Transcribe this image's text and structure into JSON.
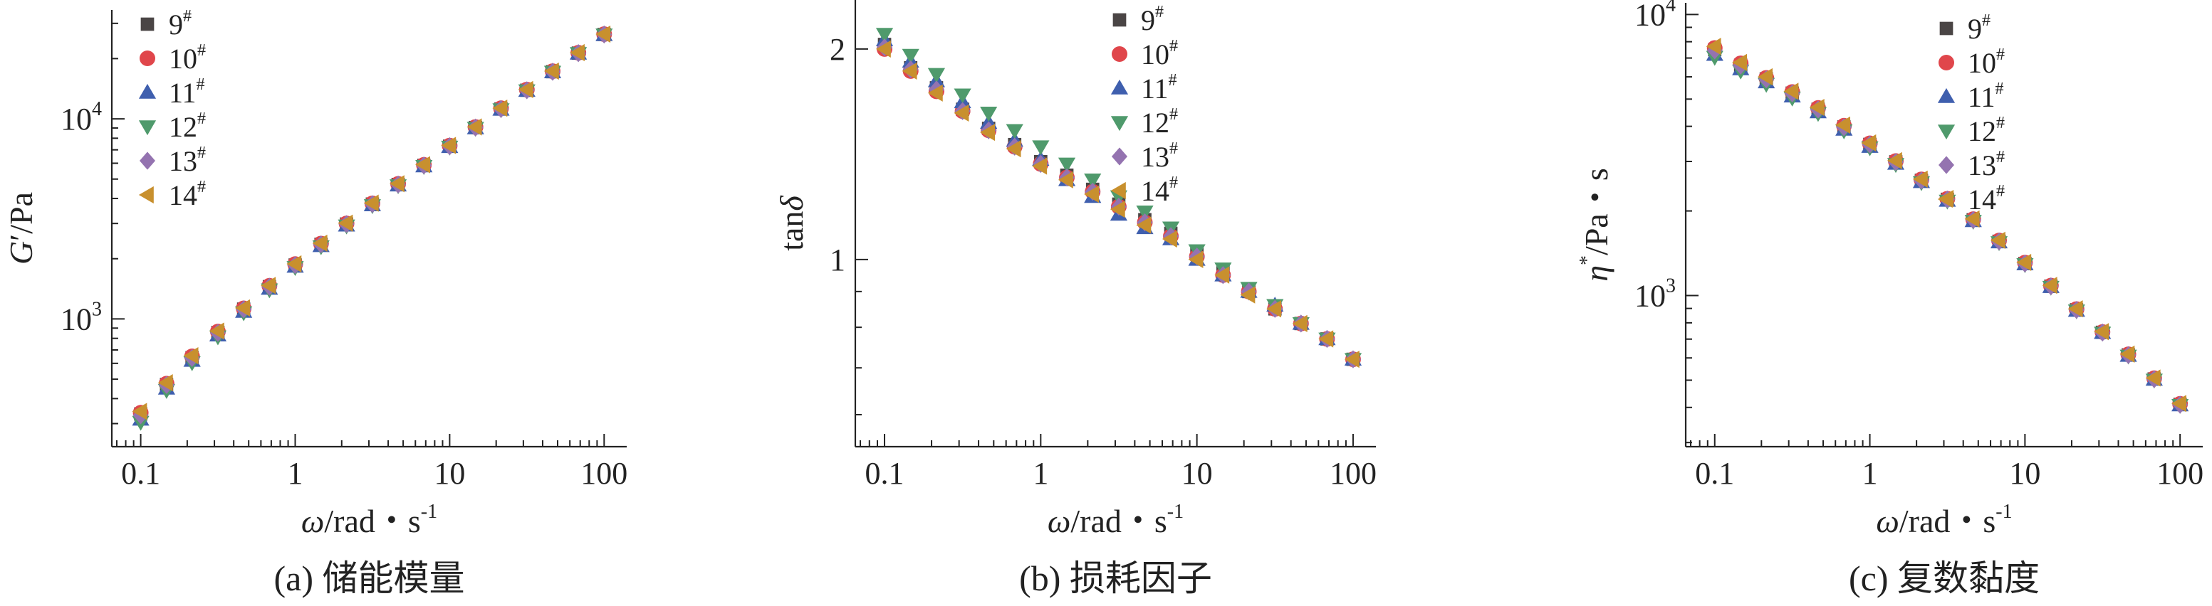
{
  "samples": [
    "9",
    "10",
    "11",
    "12",
    "13",
    "14"
  ],
  "sample_sup": "#",
  "colors": {
    "9": "#4a4545",
    "10": "#e0464b",
    "11": "#3f5fae",
    "12": "#4f9a6c",
    "13": "#9473b0",
    "14": "#c8902e",
    "axis": "#222222"
  },
  "markers": {
    "9": "square",
    "10": "circle",
    "11": "triangle-up",
    "12": "triangle-down",
    "13": "diamond",
    "14": "triangle-left"
  },
  "chart_data": [
    {
      "panel": "a",
      "type": "scatter",
      "caption": "(a) 储能模量",
      "ylabel_main": "G",
      "ylabel_prime": "′",
      "ylabel_unit": "/Pa",
      "xlabel_main": "ω",
      "xlabel_unit": "/rad・s",
      "xlabel_sup": "-1",
      "xscale": "log",
      "yscale": "log",
      "xlim": [
        0.065,
        140
      ],
      "ylim": [
        230,
        35000
      ],
      "xticks": [
        0.1,
        1,
        10,
        100
      ],
      "xtick_labels": [
        "0.1",
        "1",
        "10",
        "100"
      ],
      "yticks": [
        1000,
        10000
      ],
      "ytick_labels": [
        {
          "base": "10",
          "exp": "3"
        },
        {
          "base": "10",
          "exp": "4"
        }
      ],
      "legend": "top-left",
      "x": [
        0.1,
        0.147,
        0.215,
        0.316,
        0.464,
        0.681,
        1.0,
        1.47,
        2.15,
        3.16,
        4.64,
        6.81,
        10,
        14.7,
        21.5,
        31.6,
        46.4,
        68.1,
        100
      ],
      "series": [
        {
          "name": "9",
          "values": [
            335,
            470,
            640,
            855,
            1120,
            1450,
            1860,
            2360,
            2980,
            3750,
            4700,
            5850,
            7300,
            9050,
            11200,
            13900,
            17200,
            21300,
            26400
          ]
        },
        {
          "name": "10",
          "values": [
            340,
            475,
            650,
            865,
            1130,
            1465,
            1880,
            2380,
            3000,
            3780,
            4730,
            5890,
            7350,
            9100,
            11300,
            14000,
            17300,
            21400,
            26500
          ]
        },
        {
          "name": "11",
          "values": [
            315,
            450,
            620,
            830,
            1090,
            1420,
            1830,
            2320,
            2940,
            3710,
            4660,
            5810,
            7250,
            9000,
            11150,
            13850,
            17150,
            21250,
            26300
          ]
        },
        {
          "name": "12",
          "values": [
            305,
            440,
            605,
            815,
            1075,
            1400,
            1810,
            2300,
            2920,
            3690,
            4640,
            5790,
            7230,
            8980,
            11130,
            13830,
            17130,
            21230,
            26300
          ]
        },
        {
          "name": "13",
          "values": [
            330,
            468,
            638,
            852,
            1118,
            1448,
            1858,
            2358,
            2978,
            3748,
            4698,
            5848,
            7298,
            9048,
            11198,
            13898,
            17198,
            21298,
            26400
          ]
        },
        {
          "name": "14",
          "values": [
            345,
            480,
            655,
            870,
            1135,
            1470,
            1885,
            2390,
            3010,
            3790,
            4740,
            5900,
            7360,
            9110,
            11300,
            14010,
            17310,
            21420,
            26500
          ]
        }
      ]
    },
    {
      "panel": "b",
      "type": "scatter",
      "caption": "(b) 损耗因子",
      "ylabel_main": "tan",
      "ylabel_delta": "δ",
      "xlabel_main": "ω",
      "xlabel_unit": "/rad・s",
      "xlabel_sup": "-1",
      "xscale": "log",
      "yscale": "log",
      "xlim": [
        0.065,
        140
      ],
      "ylim": [
        0.54,
        2.35
      ],
      "xticks": [
        0.1,
        1,
        10,
        100
      ],
      "xtick_labels": [
        "0.1",
        "1",
        "10",
        "100"
      ],
      "yticks": [
        1,
        2
      ],
      "ytick_labels": [
        "1",
        "2"
      ],
      "legend": "top-right",
      "x": [
        0.1,
        0.147,
        0.215,
        0.316,
        0.464,
        0.681,
        1.0,
        1.47,
        2.15,
        3.16,
        4.64,
        6.81,
        10,
        14.7,
        21.5,
        31.6,
        46.4,
        68.1,
        100
      ],
      "series": [
        {
          "name": "9",
          "values": [
            2.03,
            1.88,
            1.76,
            1.64,
            1.54,
            1.46,
            1.38,
            1.32,
            1.26,
            1.2,
            1.14,
            1.09,
            1.02,
            0.96,
            0.9,
            0.85,
            0.81,
            0.77,
            0.72
          ]
        },
        {
          "name": "10",
          "values": [
            2.0,
            1.86,
            1.74,
            1.63,
            1.53,
            1.45,
            1.37,
            1.31,
            1.25,
            1.19,
            1.13,
            1.08,
            1.01,
            0.95,
            0.9,
            0.85,
            0.81,
            0.77,
            0.72
          ]
        },
        {
          "name": "11",
          "values": [
            2.06,
            1.92,
            1.8,
            1.68,
            1.57,
            1.48,
            1.39,
            1.3,
            1.23,
            1.16,
            1.11,
            1.07,
            1.0,
            0.95,
            0.9,
            0.86,
            0.81,
            0.77,
            0.72
          ]
        },
        {
          "name": "12",
          "values": [
            2.1,
            1.96,
            1.84,
            1.72,
            1.62,
            1.53,
            1.45,
            1.37,
            1.3,
            1.23,
            1.17,
            1.11,
            1.03,
            0.97,
            0.91,
            0.86,
            0.81,
            0.77,
            0.72
          ]
        },
        {
          "name": "13",
          "values": [
            2.01,
            1.87,
            1.75,
            1.63,
            1.53,
            1.45,
            1.37,
            1.31,
            1.25,
            1.19,
            1.13,
            1.08,
            1.01,
            0.95,
            0.9,
            0.85,
            0.81,
            0.77,
            0.72
          ]
        },
        {
          "name": "14",
          "values": [
            2.0,
            1.86,
            1.73,
            1.62,
            1.52,
            1.44,
            1.36,
            1.3,
            1.24,
            1.18,
            1.12,
            1.07,
            1.0,
            0.95,
            0.89,
            0.85,
            0.81,
            0.77,
            0.72
          ]
        }
      ]
    },
    {
      "panel": "c",
      "type": "scatter",
      "caption": "(c) 复数黏度",
      "ylabel_main": "η",
      "ylabel_sup": "*",
      "ylabel_unit": "/Pa・s",
      "xlabel_main": "ω",
      "xlabel_unit": "/rad・s",
      "xlabel_sup": "-1",
      "xscale": "log",
      "yscale": "log",
      "xlim": [
        0.065,
        140
      ],
      "ylim": [
        290,
        11000
      ],
      "xticks": [
        0.1,
        1,
        10,
        100
      ],
      "xtick_labels": [
        "0.1",
        "1",
        "10",
        "100"
      ],
      "yticks": [
        1000,
        10000
      ],
      "ytick_labels": [
        {
          "base": "10",
          "exp": "3"
        },
        {
          "base": "10",
          "exp": "4"
        }
      ],
      "legend": "top-right",
      "x": [
        0.1,
        0.147,
        0.215,
        0.316,
        0.464,
        0.681,
        1.0,
        1.47,
        2.15,
        3.16,
        4.64,
        6.81,
        10,
        14.7,
        21.5,
        31.6,
        46.4,
        68.1,
        100
      ],
      "series": [
        {
          "name": "9",
          "values": [
            7500,
            6600,
            5900,
            5250,
            4600,
            3980,
            3450,
            2990,
            2570,
            2200,
            1860,
            1560,
            1300,
            1080,
            890,
            740,
            615,
            505,
            410
          ]
        },
        {
          "name": "10",
          "values": [
            7600,
            6700,
            5950,
            5300,
            4650,
            4020,
            3480,
            3010,
            2590,
            2210,
            1870,
            1570,
            1310,
            1085,
            895,
            742,
            618,
            508,
            412
          ]
        },
        {
          "name": "11",
          "values": [
            7200,
            6400,
            5750,
            5120,
            4500,
            3900,
            3390,
            2950,
            2540,
            2180,
            1845,
            1550,
            1295,
            1075,
            885,
            738,
            612,
            503,
            408
          ]
        },
        {
          "name": "12",
          "values": [
            7050,
            6300,
            5650,
            5050,
            4450,
            3860,
            3360,
            2930,
            2525,
            2170,
            1840,
            1545,
            1290,
            1072,
            883,
            736,
            610,
            501,
            407
          ]
        },
        {
          "name": "13",
          "values": [
            7450,
            6580,
            5880,
            5240,
            4590,
            3970,
            3445,
            2985,
            2565,
            2198,
            1858,
            1558,
            1300,
            1079,
            889,
            739,
            614,
            504,
            409
          ]
        },
        {
          "name": "14",
          "values": [
            7700,
            6750,
            6000,
            5330,
            4670,
            4040,
            3490,
            3020,
            2595,
            2215,
            1873,
            1572,
            1312,
            1087,
            897,
            744,
            619,
            509,
            413
          ]
        }
      ]
    }
  ]
}
